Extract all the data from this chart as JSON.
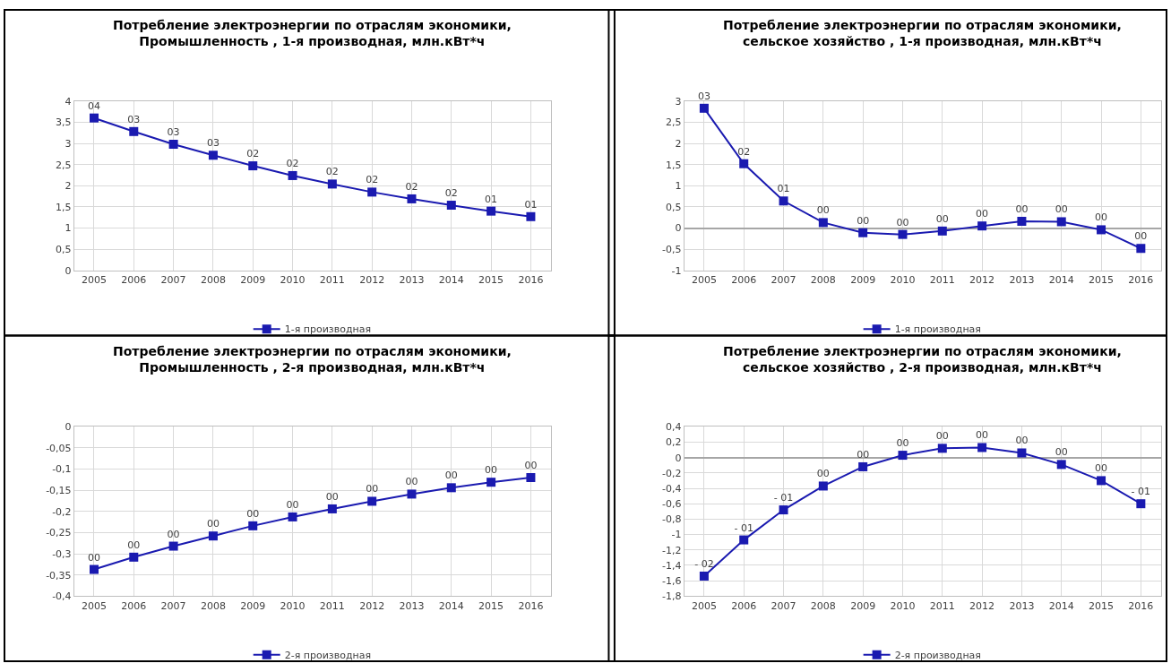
{
  "chart_data": [
    {
      "type": "line",
      "title": "Потребление электроэнергии по отраслям экономики,\nПромышленность , 1-я производная, млн.кВт*ч",
      "categories": [
        "2005",
        "2006",
        "2007",
        "2008",
        "2009",
        "2010",
        "2011",
        "2012",
        "2013",
        "2014",
        "2015",
        "2016"
      ],
      "series": [
        {
          "name": "1-я производная",
          "color": "#1a1ab0",
          "values": [
            3.6,
            3.28,
            2.98,
            2.72,
            2.47,
            2.24,
            2.04,
            1.85,
            1.69,
            1.54,
            1.4,
            1.27
          ],
          "value_labels": [
            "04",
            "03",
            "03",
            "03",
            "02",
            "02",
            "02",
            "02",
            "02",
            "02",
            "01",
            "01"
          ]
        }
      ],
      "ylim": [
        0,
        4
      ],
      "yticks": [
        0,
        {
          "value": 0.5,
          "label": "0,5"
        },
        1,
        {
          "value": 1.5,
          "label": "1,5"
        },
        2,
        {
          "value": 2.5,
          "label": "2,5"
        },
        3,
        {
          "value": 3.5,
          "label": "3,5"
        },
        4
      ],
      "grid": true,
      "legend": "bottom",
      "marker": "square",
      "line_style": "solid"
    },
    {
      "type": "line",
      "title": "Потребление электроэнергии по отраслям экономики,\nсельское хозяйство , 1-я производная, млн.кВт*ч",
      "categories": [
        "2005",
        "2006",
        "2007",
        "2008",
        "2009",
        "2010",
        "2011",
        "2012",
        "2013",
        "2014",
        "2015",
        "2016"
      ],
      "series": [
        {
          "name": "1-я производная",
          "color": "#1a1ab0",
          "values": [
            2.83,
            1.52,
            0.64,
            0.13,
            -0.11,
            -0.15,
            -0.07,
            0.05,
            0.16,
            0.15,
            -0.04,
            -0.48
          ],
          "value_labels": [
            "03",
            "02",
            "01",
            "00",
            "00",
            "00",
            "00",
            "00",
            "00",
            "00",
            "00",
            "00"
          ]
        }
      ],
      "ylim": [
        -1,
        3
      ],
      "yticks": [
        -1,
        {
          "value": -0.5,
          "label": "-0,5"
        },
        0,
        {
          "value": 0.5,
          "label": "0,5"
        },
        1,
        {
          "value": 1.5,
          "label": "1,5"
        },
        2,
        {
          "value": 2.5,
          "label": "2,5"
        },
        3
      ],
      "grid": true,
      "legend": "bottom",
      "marker": "square",
      "line_style": "solid"
    },
    {
      "type": "line",
      "title": "Потребление электроэнергии по отраслям экономики,\nПромышленность , 2-я производная, млн.кВт*ч",
      "categories": [
        "2005",
        "2006",
        "2007",
        "2008",
        "2009",
        "2010",
        "2011",
        "2012",
        "2013",
        "2014",
        "2015",
        "2016"
      ],
      "series": [
        {
          "name": "2-я производная",
          "color": "#1a1ab0",
          "values": [
            -0.337,
            -0.308,
            -0.282,
            -0.258,
            -0.234,
            -0.213,
            -0.194,
            -0.176,
            -0.159,
            -0.144,
            -0.131,
            -0.12
          ],
          "value_labels": [
            "00",
            "00",
            "00",
            "00",
            "00",
            "00",
            "00",
            "00",
            "00",
            "00",
            "00",
            "00"
          ]
        }
      ],
      "ylim": [
        -0.4,
        0
      ],
      "yticks": [
        {
          "value": -0.4,
          "label": "-0,4"
        },
        {
          "value": -0.35,
          "label": "-0,35"
        },
        {
          "value": -0.3,
          "label": "-0,3"
        },
        {
          "value": -0.25,
          "label": "-0,25"
        },
        {
          "value": -0.2,
          "label": "-0,2"
        },
        {
          "value": -0.15,
          "label": "-0,15"
        },
        {
          "value": -0.1,
          "label": "-0,1"
        },
        {
          "value": -0.05,
          "label": "-0,05"
        },
        0
      ],
      "grid": true,
      "legend": "bottom",
      "marker": "square",
      "line_style": "solid"
    },
    {
      "type": "line",
      "title": "Потребление электроэнергии по отраслям экономики,\nсельское хозяйство , 2-я производная, млн.кВт*ч",
      "categories": [
        "2005",
        "2006",
        "2007",
        "2008",
        "2009",
        "2010",
        "2011",
        "2012",
        "2013",
        "2014",
        "2015",
        "2016"
      ],
      "series": [
        {
          "name": "2-я производная",
          "color": "#1a1ab0",
          "values": [
            -1.54,
            -1.07,
            -0.68,
            -0.37,
            -0.12,
            0.03,
            0.12,
            0.13,
            0.06,
            -0.09,
            -0.3,
            -0.6
          ],
          "value_labels": [
            "- 02",
            "- 01",
            "- 01",
            "00",
            "00",
            "00",
            "00",
            "00",
            "00",
            "00",
            "00",
            "- 01"
          ]
        }
      ],
      "ylim": [
        -1.8,
        0.4
      ],
      "yticks": [
        {
          "value": -1.8,
          "label": "-1,8"
        },
        {
          "value": -1.6,
          "label": "-1,6"
        },
        {
          "value": -1.4,
          "label": "-1,4"
        },
        {
          "value": -1.2,
          "label": "-1,2"
        },
        -1,
        {
          "value": -0.8,
          "label": "-0,8"
        },
        {
          "value": -0.6,
          "label": "-0,6"
        },
        {
          "value": -0.4,
          "label": "-0,4"
        },
        {
          "value": -0.2,
          "label": "-0,2"
        },
        0,
        {
          "value": 0.2,
          "label": "0,2"
        },
        {
          "value": 0.4,
          "label": "0,4"
        }
      ],
      "grid": true,
      "legend": "bottom",
      "marker": "square",
      "line_style": "solid"
    }
  ]
}
